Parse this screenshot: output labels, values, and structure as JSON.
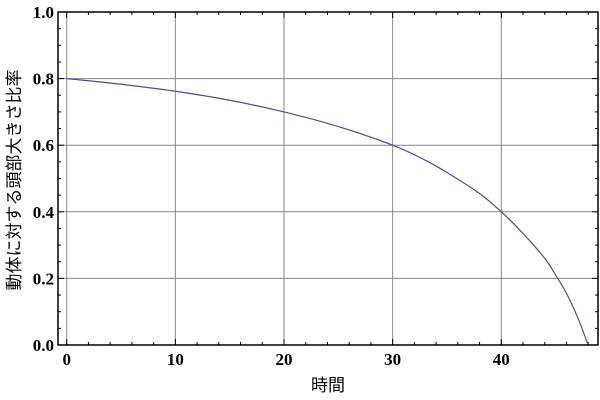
{
  "chart_data": {
    "type": "line",
    "title": "",
    "xlabel": "時間",
    "ylabel": "動体に対する頭部大きさ比率",
    "xlim": [
      -0.8,
      48.9
    ],
    "ylim": [
      0,
      1.0
    ],
    "xticks": [
      0,
      10,
      20,
      30,
      40
    ],
    "yticks": [
      0.0,
      0.2,
      0.4,
      0.6,
      0.8,
      1.0
    ],
    "ytick_labels": [
      "0.0",
      "0.2",
      "0.4",
      "0.6",
      "0.8",
      "1.0"
    ],
    "grid": true,
    "series": [
      {
        "x": [
          0,
          5,
          10,
          15,
          20,
          25,
          30,
          33,
          35,
          38,
          40,
          42,
          44,
          45,
          46,
          47,
          48
        ],
        "y": [
          0.8,
          0.783,
          0.762,
          0.735,
          0.7,
          0.656,
          0.6,
          0.555,
          0.518,
          0.455,
          0.4,
          0.335,
          0.26,
          0.21,
          0.155,
          0.085,
          0.0
        ],
        "color": "#4d4d8f"
      }
    ],
    "grid_color": "#888888"
  }
}
